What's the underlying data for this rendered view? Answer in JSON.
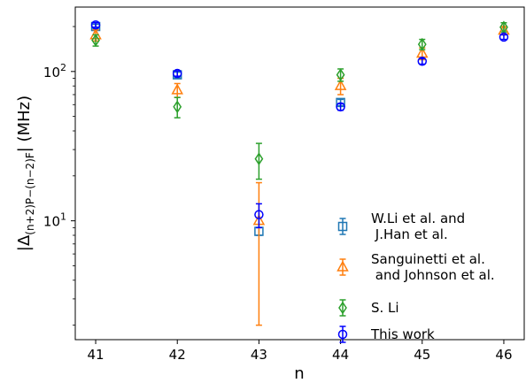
{
  "chart_data": {
    "type": "scatter",
    "title": "",
    "xlabel": "n",
    "ylabel": "|Δ",
    "ylabel_sub": "(n+2)P−(n−2)F",
    "ylabel_unit": "| (MHz)",
    "yscale": "log",
    "xlim": [
      40.75,
      46.25
    ],
    "ylim": [
      1.6,
      270
    ],
    "x_ticks": [
      41,
      42,
      43,
      44,
      45,
      46
    ],
    "y_ticks": [
      {
        "value": 10,
        "base": "10",
        "exp": "1"
      },
      {
        "value": 100,
        "base": "10",
        "exp": "2"
      }
    ],
    "grid": false,
    "legend_position": "lower-right",
    "series": [
      {
        "name": [
          "W.Li et al. and",
          " J.Han et al."
        ],
        "color": "#1f77b4",
        "marker": "square",
        "points": [
          {
            "x": 41,
            "y": 200,
            "err": 7
          },
          {
            "x": 42,
            "y": 95,
            "err": 4
          },
          {
            "x": 43,
            "y": 8.5,
            "err": 0.5
          },
          {
            "x": 44,
            "y": 62,
            "err": 3
          }
        ]
      },
      {
        "name": [
          "Sanguinetti et al.",
          " and Johnson et al."
        ],
        "color": "#ff7f0e",
        "marker": "triangle",
        "points": [
          {
            "x": 41,
            "y": 175,
            "err": 15
          },
          {
            "x": 42,
            "y": 75,
            "err": 8
          },
          {
            "x": 43,
            "y": 10,
            "errlo": 8,
            "errhi": 8
          },
          {
            "x": 44,
            "y": 80,
            "err": 10
          },
          {
            "x": 45,
            "y": 132,
            "err": 12
          },
          {
            "x": 46,
            "y": 188,
            "err": 12
          }
        ]
      },
      {
        "name": [
          "S. Li"
        ],
        "color": "#2ca02c",
        "marker": "diamond",
        "points": [
          {
            "x": 41,
            "y": 162,
            "err": 14
          },
          {
            "x": 42,
            "y": 58,
            "err": 9
          },
          {
            "x": 43,
            "y": 26,
            "err": 7
          },
          {
            "x": 44,
            "y": 95,
            "err": 9
          },
          {
            "x": 45,
            "y": 152,
            "err": 12
          },
          {
            "x": 46,
            "y": 198,
            "err": 14
          }
        ]
      },
      {
        "name": [
          "This work"
        ],
        "color": "#0000ff",
        "marker": "circle",
        "points": [
          {
            "x": 41,
            "y": 205,
            "err": 7
          },
          {
            "x": 42,
            "y": 97,
            "err": 4
          },
          {
            "x": 43,
            "y": 11,
            "err": 2
          },
          {
            "x": 44,
            "y": 58,
            "err": 3
          },
          {
            "x": 45,
            "y": 117,
            "err": 5
          },
          {
            "x": 46,
            "y": 170,
            "err": 6
          }
        ]
      }
    ]
  }
}
